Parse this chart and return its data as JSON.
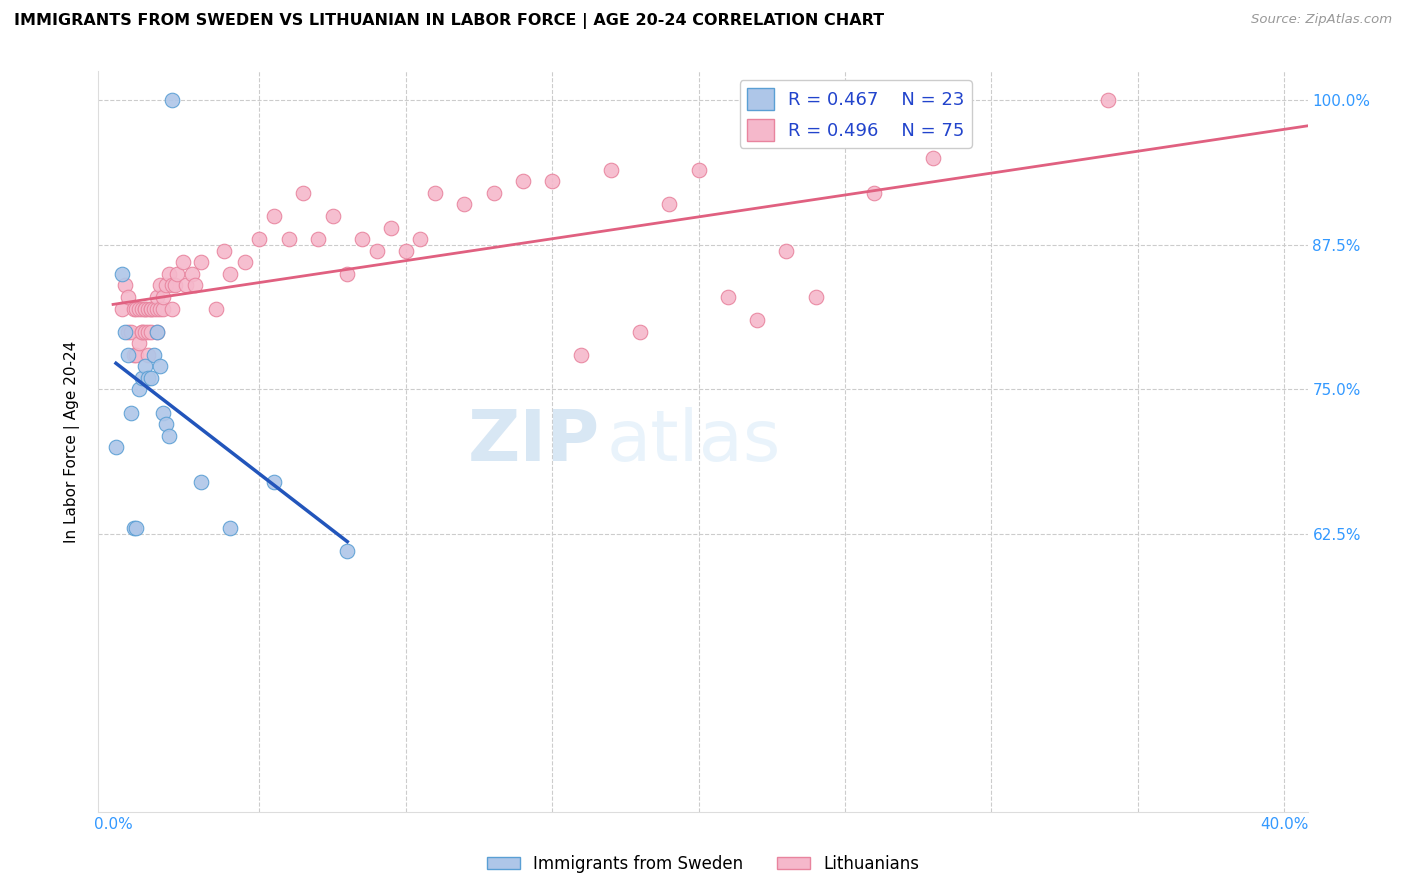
{
  "title": "IMMIGRANTS FROM SWEDEN VS LITHUANIAN IN LABOR FORCE | AGE 20-24 CORRELATION CHART",
  "source": "Source: ZipAtlas.com",
  "ylabel": "In Labor Force | Age 20-24",
  "xlim": [
    -0.005,
    0.408
  ],
  "ylim": [
    0.385,
    1.025
  ],
  "xtick_positions": [
    0.0,
    0.05,
    0.1,
    0.15,
    0.2,
    0.25,
    0.3,
    0.35,
    0.4
  ],
  "xticklabels": [
    "0.0%",
    "",
    "",
    "",
    "",
    "",
    "",
    "",
    "40.0%"
  ],
  "ytick_positions": [
    0.625,
    0.75,
    0.875,
    1.0
  ],
  "yticklabels": [
    "62.5%",
    "75.0%",
    "87.5%",
    "100.0%"
  ],
  "sweden_color": "#aec6e8",
  "lithuanian_color": "#f5b8cb",
  "sweden_edge": "#5a9fd4",
  "lithuanian_edge": "#e8849e",
  "trend_sweden_color": "#2255bb",
  "trend_lithuanian_color": "#e06080",
  "legend_box_color_sweden": "#aec6e8",
  "legend_box_color_lithuanian": "#f5b8cb",
  "legend_edge_sweden": "#5a9fd4",
  "legend_edge_lithuanian": "#e8849e",
  "R_sweden": "0.467",
  "N_sweden": "23",
  "R_lithuanian": "0.496",
  "N_lithuanian": "75",
  "watermark_zip": "ZIP",
  "watermark_atlas": "atlas",
  "sweden_x": [
    0.001,
    0.003,
    0.004,
    0.005,
    0.006,
    0.007,
    0.008,
    0.009,
    0.01,
    0.011,
    0.012,
    0.013,
    0.014,
    0.015,
    0.016,
    0.017,
    0.018,
    0.019,
    0.02,
    0.03,
    0.04,
    0.055,
    0.08
  ],
  "sweden_y": [
    0.7,
    0.85,
    0.8,
    0.78,
    0.73,
    0.63,
    0.63,
    0.75,
    0.76,
    0.77,
    0.76,
    0.76,
    0.78,
    0.8,
    0.77,
    0.73,
    0.72,
    0.71,
    1.0,
    0.67,
    0.63,
    0.67,
    0.61
  ],
  "lith_x": [
    0.003,
    0.004,
    0.005,
    0.005,
    0.006,
    0.007,
    0.007,
    0.008,
    0.008,
    0.009,
    0.009,
    0.01,
    0.01,
    0.01,
    0.011,
    0.011,
    0.011,
    0.012,
    0.012,
    0.012,
    0.013,
    0.013,
    0.013,
    0.014,
    0.015,
    0.015,
    0.015,
    0.016,
    0.016,
    0.017,
    0.017,
    0.018,
    0.019,
    0.02,
    0.02,
    0.021,
    0.022,
    0.024,
    0.025,
    0.027,
    0.028,
    0.03,
    0.035,
    0.038,
    0.04,
    0.045,
    0.05,
    0.055,
    0.06,
    0.065,
    0.07,
    0.075,
    0.08,
    0.085,
    0.09,
    0.095,
    0.1,
    0.105,
    0.11,
    0.12,
    0.13,
    0.14,
    0.15,
    0.16,
    0.17,
    0.18,
    0.19,
    0.2,
    0.21,
    0.22,
    0.23,
    0.24,
    0.26,
    0.28,
    0.34
  ],
  "lith_y": [
    0.82,
    0.84,
    0.8,
    0.83,
    0.8,
    0.78,
    0.82,
    0.78,
    0.82,
    0.79,
    0.82,
    0.8,
    0.8,
    0.82,
    0.82,
    0.8,
    0.82,
    0.78,
    0.8,
    0.82,
    0.8,
    0.82,
    0.82,
    0.82,
    0.8,
    0.82,
    0.83,
    0.82,
    0.84,
    0.82,
    0.83,
    0.84,
    0.85,
    0.82,
    0.84,
    0.84,
    0.85,
    0.86,
    0.84,
    0.85,
    0.84,
    0.86,
    0.82,
    0.87,
    0.85,
    0.86,
    0.88,
    0.9,
    0.88,
    0.92,
    0.88,
    0.9,
    0.85,
    0.88,
    0.87,
    0.89,
    0.87,
    0.88,
    0.92,
    0.91,
    0.92,
    0.93,
    0.93,
    0.78,
    0.94,
    0.8,
    0.91,
    0.94,
    0.83,
    0.81,
    0.87,
    0.83,
    0.92,
    0.95,
    1.0
  ]
}
